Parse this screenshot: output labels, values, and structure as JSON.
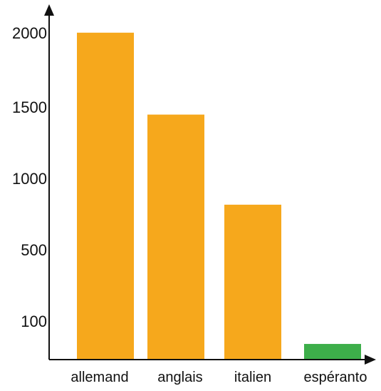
{
  "chart_data": {
    "type": "bar",
    "categories": [
      "allemand",
      "anglais",
      "italien",
      "espéranto"
    ],
    "values": [
      2000,
      1500,
      950,
      100
    ],
    "y_ticks": [
      "2000",
      "1500",
      "1000",
      "500",
      "100"
    ],
    "y_tick_values": [
      2000,
      1500,
      1000,
      500,
      100
    ],
    "title": "",
    "xlabel": "",
    "ylabel": "",
    "grid": false,
    "colors": {
      "allemand": "#F6A81C",
      "anglais": "#F6A81C",
      "italien": "#F6A81C",
      "espéranto": "#3DAE4A",
      "axis": "#111111"
    }
  }
}
